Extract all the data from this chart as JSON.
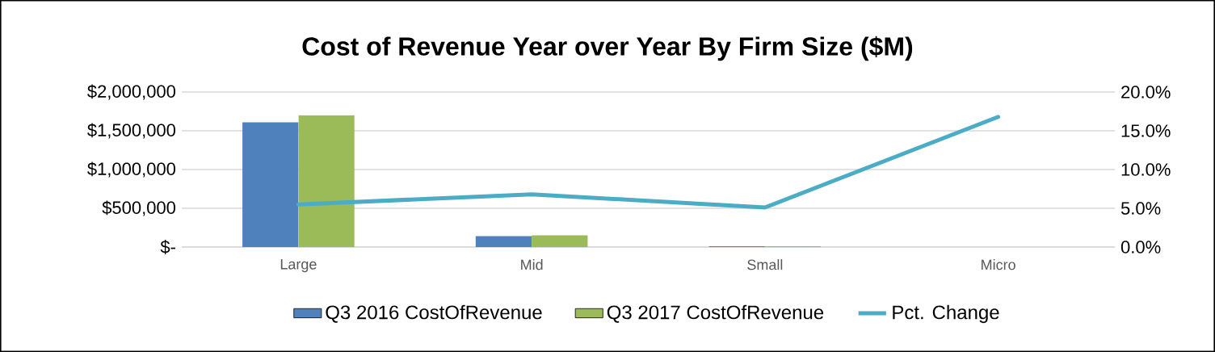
{
  "chart_data": {
    "type": "bar",
    "title": "Cost of Revenue Year over Year By Firm Size ($M)",
    "categories": [
      "Large",
      "Mid",
      "Small",
      "Micro"
    ],
    "series": [
      {
        "name": "Q3 2016 CostOfRevenue",
        "color": "#4f81bd",
        "values": [
          1610000,
          140000,
          10000,
          null
        ]
      },
      {
        "name": "Q3 2017 CostOfRevenue",
        "color": "#9bbb59",
        "values": [
          1700000,
          150000,
          10000,
          null
        ]
      },
      {
        "name": "Pct. Change",
        "type": "line",
        "axis": "y2",
        "color": "#4bacc6",
        "values": [
          5.5,
          6.8,
          5.1,
          16.8
        ]
      }
    ],
    "ylim": [
      0,
      2000000
    ],
    "yticks": [
      {
        "value": 0,
        "label": "$-"
      },
      {
        "value": 500000,
        "label": "$500,000"
      },
      {
        "value": 1000000,
        "label": "$1,000,000"
      },
      {
        "value": 1500000,
        "label": "$1,500,000"
      },
      {
        "value": 2000000,
        "label": "$2,000,000"
      }
    ],
    "y2lim": [
      0,
      20
    ],
    "y2ticks": [
      {
        "value": 0,
        "label": "0.0%"
      },
      {
        "value": 5,
        "label": "5.0%"
      },
      {
        "value": 10,
        "label": "10.0%"
      },
      {
        "value": 15,
        "label": "15.0%"
      },
      {
        "value": 20,
        "label": "20.0%"
      }
    ],
    "grid": "y",
    "legend": "bottom"
  }
}
